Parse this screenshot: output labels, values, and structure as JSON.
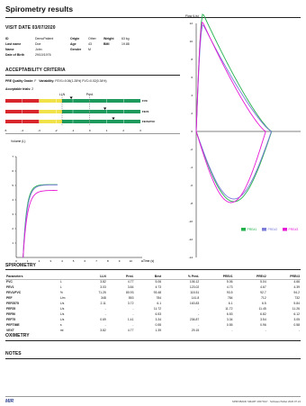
{
  "report": {
    "title": "Spirometry results"
  },
  "visit": {
    "heading": "VISIT DATE 03/07/2020",
    "id_label": "ID",
    "id_value": "DemoPatient",
    "origin_label": "Origin",
    "origin_value": "Other",
    "weight_label": "Weight",
    "weight_value": "63 kg",
    "lastname_label": "Last name",
    "lastname_value": "Doe",
    "age_label": "Age",
    "age_value": "43",
    "bmi_label": "BMI",
    "bmi_value": "19.88",
    "name_label": "Name",
    "name_value": "John",
    "gender_label": "Gender",
    "gender_value": "M",
    "dob_label": "Date of Birth",
    "dob_value": "29/10/1976"
  },
  "criteria": {
    "heading": "ACCEPTABILITY CRITERIA",
    "pre_quality_label": "PRE Quality Grade:",
    "pre_quality_value": "F",
    "variability_label": "Variability:",
    "variability_value": "FEV1=0.06(1.28%) FVC=0.02(0.34%)",
    "acceptable_label": "Acceptable trials:",
    "acceptable_value": "2"
  },
  "zscore": {
    "lln_label": "LLN",
    "pred_label": "Pred.",
    "rows": [
      {
        "label": "FVC",
        "z": -1.1
      },
      {
        "label": "FEV1",
        "z": 0.9
      },
      {
        "label": "FEV1/FVC",
        "z": 1.4
      }
    ],
    "ticks": [
      "-5",
      "-4",
      "-3",
      "-2",
      "-1",
      "0",
      "1",
      "2",
      "3"
    ]
  },
  "vt_chart": {
    "y_label": "Volume (L)",
    "x_label": "Time (s)",
    "y_ticks": [
      "7",
      "6",
      "5",
      "4",
      "3",
      "2",
      "1"
    ],
    "x_ticks": [
      "0",
      "1",
      "2",
      "3",
      "4",
      "5",
      "6",
      "7",
      "8",
      "9",
      "10",
      "11"
    ]
  },
  "fv_chart": {
    "y_label": "Flow (L/s)",
    "x_label": "Volume (L)",
    "y_ticks": [
      "12",
      "10",
      "8",
      "6",
      "4",
      "2",
      "0",
      "-2",
      "-4",
      "-6",
      "-8",
      "-10",
      "-12",
      "-14"
    ],
    "x_ticks": [
      "0",
      "1",
      "2",
      "3",
      "4",
      "5",
      "6",
      "7"
    ],
    "legend": [
      {
        "name": "PRE#1",
        "color": "#22b14c"
      },
      {
        "name": "PRE#2",
        "color": "#7b7bd9"
      },
      {
        "name": "PRE#3",
        "color": "#e619d6"
      }
    ]
  },
  "spirometry": {
    "heading": "SPIROMETRY",
    "columns": [
      "Parameters",
      "",
      "LLN",
      "Pred.",
      "Best",
      "% Pred.",
      "PRE#1",
      "PRE#2",
      "PRE#3"
    ],
    "rows": [
      [
        "FVC",
        "L",
        "3.82",
        "4.77",
        "5.06",
        "106.12",
        "5.06",
        "5.04",
        "4.66"
      ],
      [
        "FEV1",
        "L",
        "3.03",
        "3.84",
        "4.73",
        "123.02",
        "4.73",
        "4.67",
        "4.39"
      ],
      [
        "FEV1/FVC",
        "%",
        "71.25",
        "80.93",
        "93.48",
        "115.51",
        "93.5",
        "92.7",
        "94.2"
      ],
      [
        "PEF",
        "L/m",
        "348",
        "553",
        "784",
        "141.8",
        "784",
        "712",
        "732"
      ],
      [
        "FEF2575",
        "L/s",
        "2.11",
        "3.72",
        "6.1",
        "163.83",
        "6.1",
        "6.5",
        "5.84"
      ],
      [
        "FEF25",
        "L/s",
        "-",
        "-",
        "11.72",
        "-",
        "11.72",
        "11.45",
        "11.26"
      ],
      [
        "FEF50",
        "L/s",
        "-",
        "-",
        "6.53",
        "-",
        "6.53",
        "6.82",
        "6.12"
      ],
      [
        "FEF75",
        "L/s",
        "0.69",
        "1.41",
        "3.34",
        "236.87",
        "3.34",
        "3.54",
        "3.05"
      ],
      [
        "PEFTIME",
        "s",
        "-",
        "-",
        "0.55",
        "-",
        "0.55",
        "0.96",
        "0.58"
      ],
      [
        "VEXT",
        "ml",
        "3.82",
        "4.77",
        "1.39",
        "29.15",
        "-",
        "-",
        "-"
      ]
    ]
  },
  "oximetry": {
    "heading": "OXIMETRY"
  },
  "notes": {
    "heading": "NOTES"
  },
  "footer": {
    "logo": "MIR",
    "right": "SPIROBANK SMART 2007NG7 · Software/Tablet 2020.07.24"
  }
}
